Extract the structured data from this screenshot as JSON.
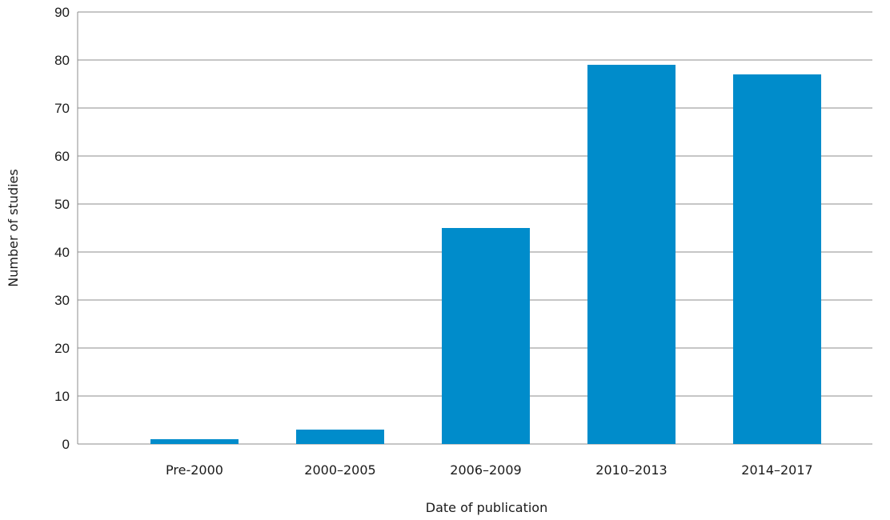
{
  "chart_data": {
    "type": "bar",
    "title": "",
    "xlabel": "Date of publication",
    "ylabel": "Number of studies",
    "categories": [
      "Pre-2000",
      "2000–2005",
      "2006–2009",
      "2010–2013",
      "2014–2017"
    ],
    "values": [
      1,
      3,
      45,
      79,
      77
    ],
    "ylim": [
      0,
      90
    ],
    "yticks": [
      "0",
      "10",
      "20",
      "30",
      "40",
      "50",
      "60",
      "70",
      "80",
      "90"
    ],
    "grid": true,
    "legend": "none",
    "bar_color": "#008ccb",
    "grid_color": "#8c8c8c"
  }
}
